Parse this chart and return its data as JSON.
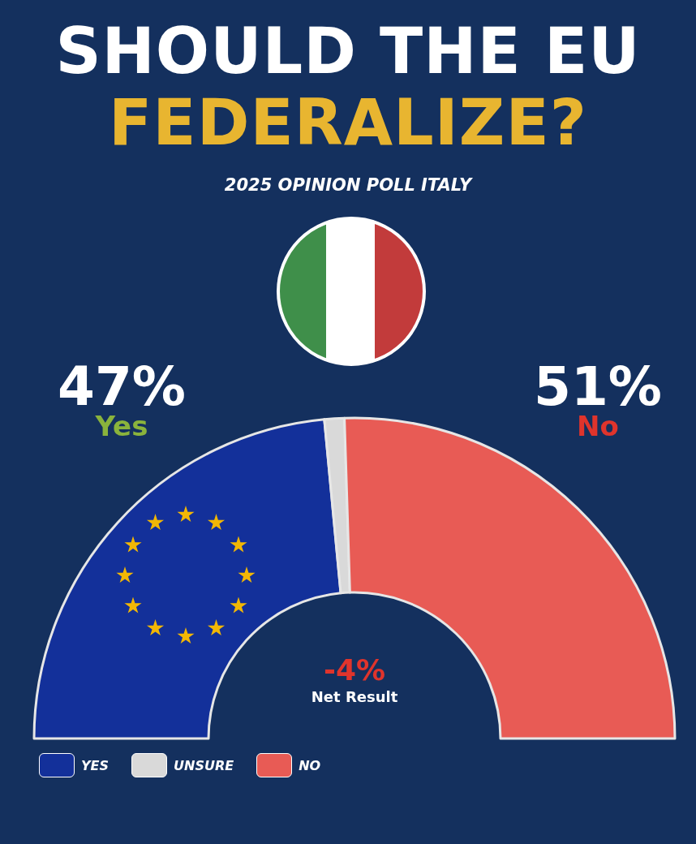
{
  "chart_data": {
    "type": "donut",
    "title": "SHOULD THE EU\nFEDERALIZE?",
    "subtitle": "2025 OPINION POLL ITALY",
    "categories": [
      "YES",
      "UNSURE",
      "NO"
    ],
    "values": [
      47,
      2,
      51
    ],
    "colors": [
      "#13309a",
      "#d9d9d9",
      "#e85b55"
    ],
    "value_labels": [
      "47%",
      null,
      "51%"
    ],
    "annotations": [
      "Yes",
      "No",
      "-4%",
      "Net Result"
    ],
    "legend": "bottom left"
  }
}
